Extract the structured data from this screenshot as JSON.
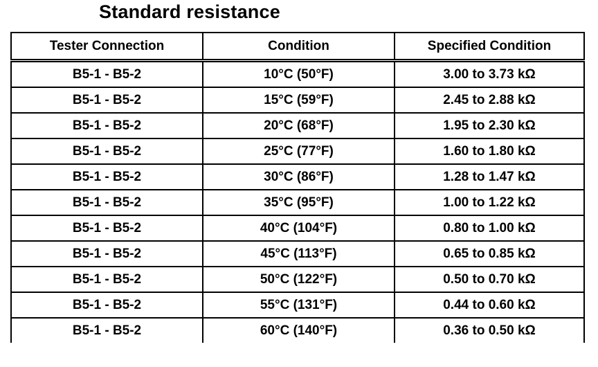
{
  "title": "Standard resistance",
  "table": {
    "headers": [
      "Tester Connection",
      "Condition",
      "Specified Condition"
    ],
    "rows": [
      {
        "connection": "B5-1 - B5-2",
        "condition": "10°C (50°F)",
        "specified": "3.00 to 3.73 kΩ"
      },
      {
        "connection": "B5-1 - B5-2",
        "condition": "15°C (59°F)",
        "specified": "2.45 to 2.88 kΩ"
      },
      {
        "connection": "B5-1 - B5-2",
        "condition": "20°C (68°F)",
        "specified": "1.95 to 2.30 kΩ"
      },
      {
        "connection": "B5-1 - B5-2",
        "condition": "25°C (77°F)",
        "specified": "1.60 to 1.80 kΩ"
      },
      {
        "connection": "B5-1 - B5-2",
        "condition": "30°C (86°F)",
        "specified": "1.28 to 1.47 kΩ"
      },
      {
        "connection": "B5-1 - B5-2",
        "condition": "35°C (95°F)",
        "specified": "1.00 to 1.22 kΩ"
      },
      {
        "connection": "B5-1 - B5-2",
        "condition": "40°C (104°F)",
        "specified": "0.80 to 1.00 kΩ"
      },
      {
        "connection": "B5-1 - B5-2",
        "condition": "45°C (113°F)",
        "specified": "0.65 to 0.85 kΩ"
      },
      {
        "connection": "B5-1 - B5-2",
        "condition": "50°C (122°F)",
        "specified": "0.50 to 0.70 kΩ"
      },
      {
        "connection": "B5-1 - B5-2",
        "condition": "55°C (131°F)",
        "specified": "0.44 to 0.60 kΩ"
      },
      {
        "connection": "B5-1 - B5-2",
        "condition": "60°C (140°F)",
        "specified": "0.36 to 0.50 kΩ"
      }
    ]
  }
}
